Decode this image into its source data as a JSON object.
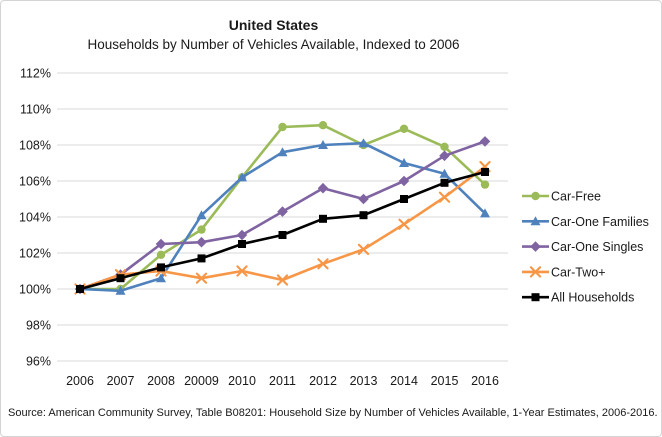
{
  "source_note": "Source: American Community Survey,  Table B08201: Household Size by Number of Vehicles Available, 1-Year Estimates, 2006-2016.",
  "chart_data": {
    "type": "line",
    "title": "United States",
    "subtitle": "Households  by Number of Vehicles Available, Indexed to 2006",
    "x_labels": [
      "2006",
      "2007",
      "2008",
      "20009",
      "2010",
      "2011",
      "2012",
      "2013",
      "2014",
      "2015",
      "2016"
    ],
    "y_tick_labels": [
      "96%",
      "98%",
      "100%",
      "102%",
      "104%",
      "106%",
      "108%",
      "110%",
      "112%"
    ],
    "ylim": [
      96,
      112
    ],
    "y_step": 2,
    "grid": true,
    "legend_position": "right",
    "grid_color": "#d9d9d9",
    "series": [
      {
        "name": "Car-Free",
        "color": "#9BBB59",
        "marker": "circle",
        "values": [
          100,
          100.0,
          101.9,
          103.3,
          106.2,
          109.0,
          109.1,
          108.0,
          108.9,
          107.9,
          105.8
        ]
      },
      {
        "name": "Car-One Families",
        "color": "#4F81BD",
        "marker": "triangle",
        "values": [
          100,
          99.9,
          100.6,
          104.1,
          106.2,
          107.6,
          108.0,
          108.1,
          107.0,
          106.4,
          104.2
        ]
      },
      {
        "name": "Car-One Singles",
        "color": "#8064A2",
        "marker": "diamond",
        "values": [
          100,
          100.8,
          102.5,
          102.6,
          103.0,
          104.3,
          105.6,
          105.0,
          106.0,
          107.4,
          108.2
        ]
      },
      {
        "name": "Car-Two+",
        "color": "#F79646",
        "marker": "x",
        "values": [
          100,
          100.8,
          101.0,
          100.6,
          101.0,
          100.5,
          101.4,
          102.2,
          103.6,
          105.1,
          106.8
        ]
      },
      {
        "name": "All Households",
        "color": "#000000",
        "marker": "square",
        "values": [
          100,
          100.6,
          101.2,
          101.7,
          102.5,
          103.0,
          103.9,
          104.1,
          105.0,
          105.9,
          106.5
        ]
      }
    ]
  }
}
